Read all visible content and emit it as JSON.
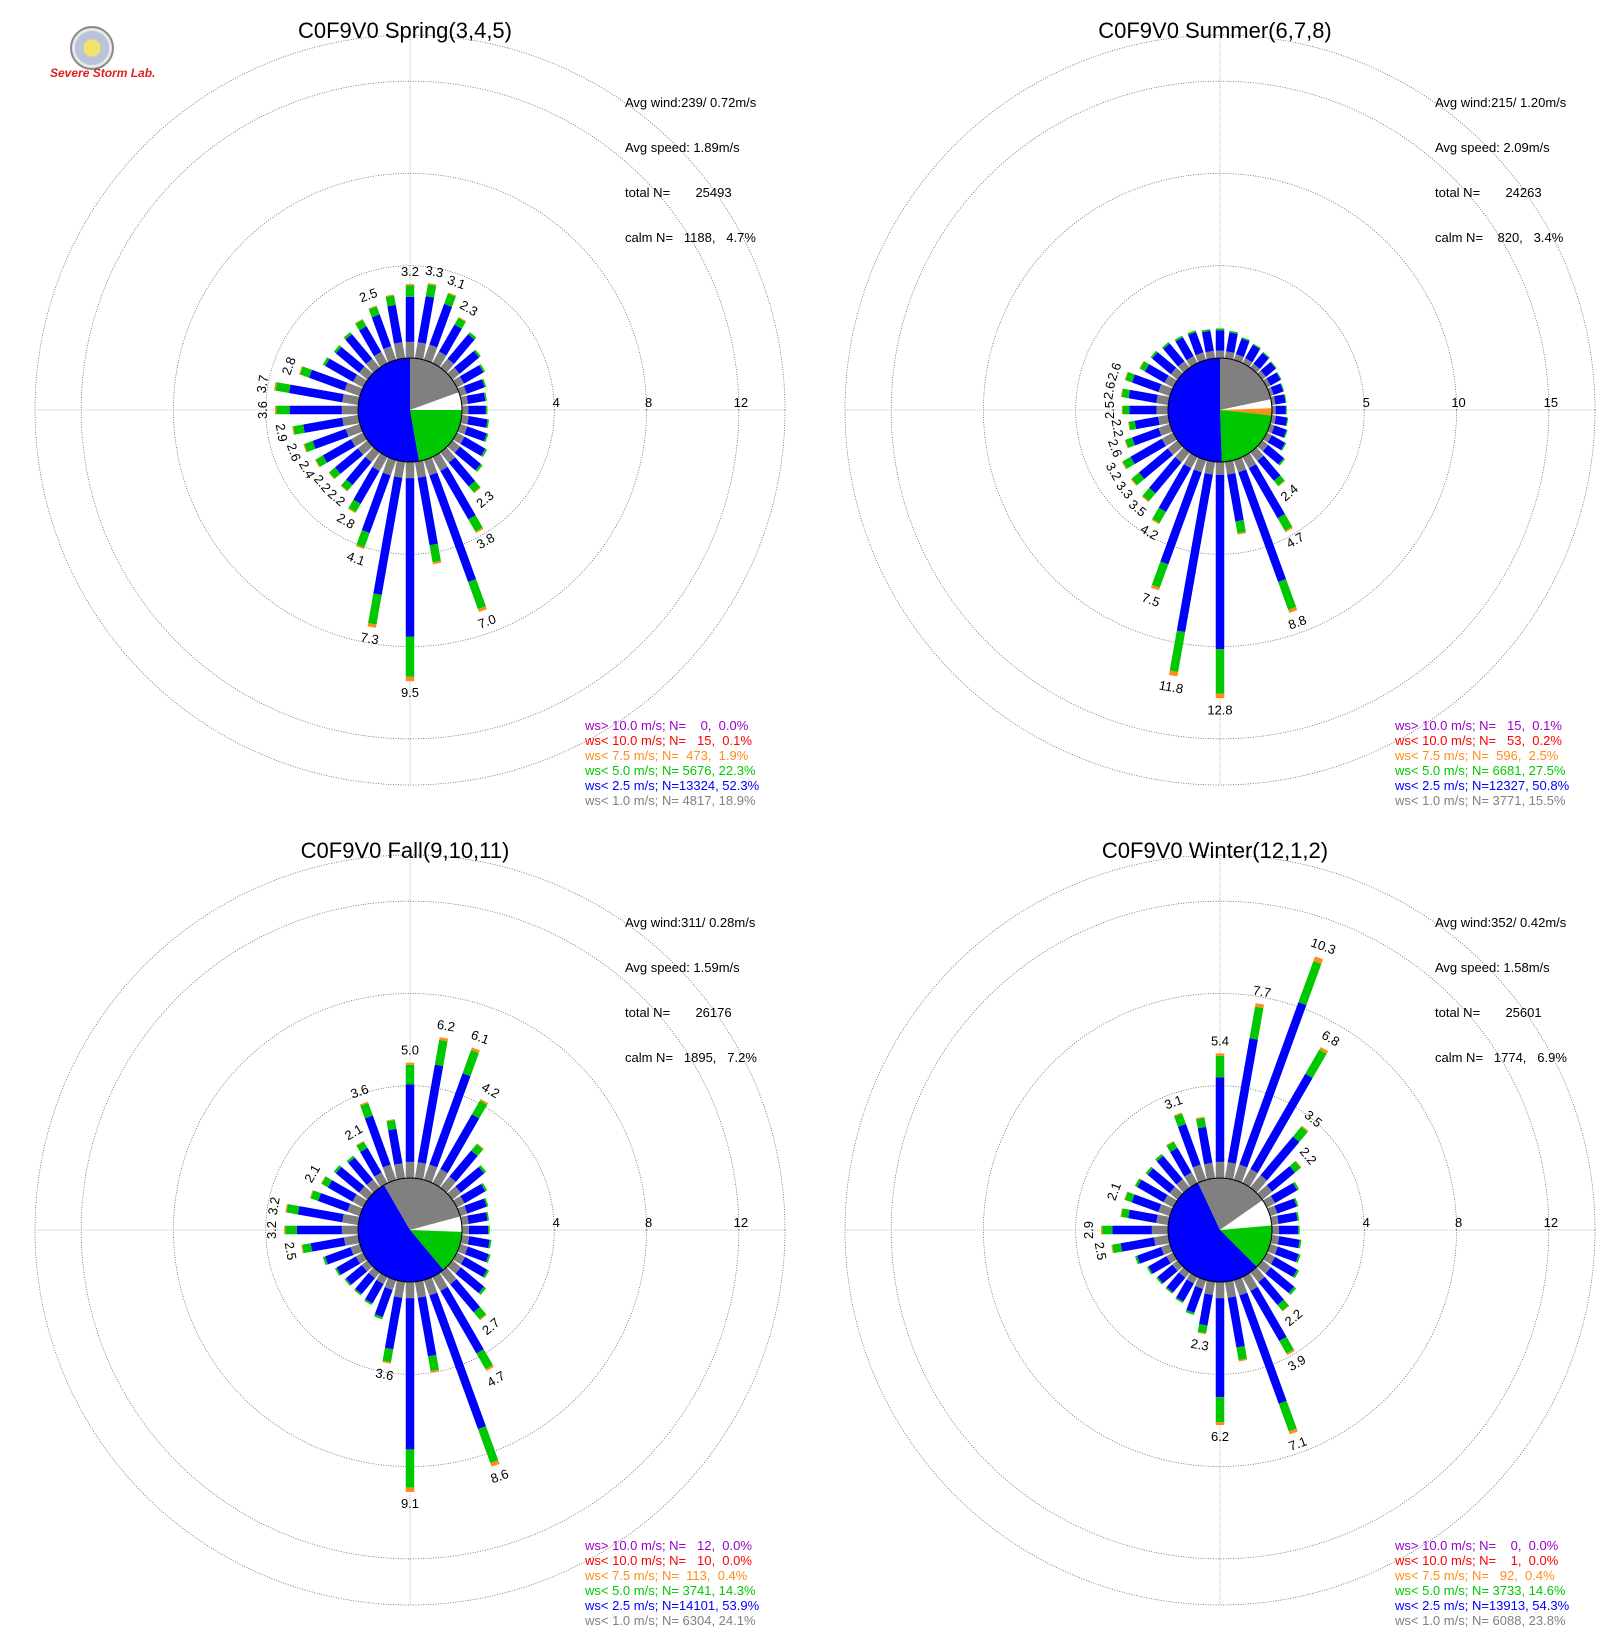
{
  "logo": {
    "text": "Severe Storm Lab."
  },
  "colors": {
    "gt10": "#9900cc",
    "lt10": "#ff0000",
    "lt75": "#ff8c1a",
    "lt5": "#00c800",
    "lt25": "#0000ff",
    "lt1": "#808080",
    "calm_blue": "#0000ff",
    "calm_green": "#00c800",
    "calm_gray": "#808080"
  },
  "legend_keys": [
    "gt10",
    "lt10",
    "lt75",
    "lt5",
    "lt25",
    "lt1"
  ],
  "legend_labels": [
    "ws> 10.0 m/s; N=",
    "ws< 10.0 m/s; N=",
    "ws< 7.5 m/s; N=",
    "ws< 5.0 m/s; N=",
    "ws< 2.5 m/s; N=",
    "ws< 1.0 m/s; N="
  ],
  "chart_data": [
    {
      "type": "polar-bar",
      "title": "C0F9V0 Spring(3,4,5)",
      "stats": {
        "avg_wind": "Avg wind:239/ 0.72m/s",
        "avg_speed": "Avg speed: 1.89m/s",
        "total": "total N=       25493",
        "calm": "calm N=   1188,   4.7%"
      },
      "r_ticks": [
        4,
        8,
        12
      ],
      "r_max": 14,
      "legend_entries": [
        "    0,  0.0%",
        "   15,  0.1%",
        "  473,  1.9%",
        " 5676, 22.3%",
        "13324, 52.3%",
        " 4817, 18.9%"
      ],
      "bars": [
        {
          "dir": 0,
          "total": 3.2,
          "label": true
        },
        {
          "dir": 10,
          "total": 3.3,
          "label": true
        },
        {
          "dir": 20,
          "total": 3.1,
          "label": true
        },
        {
          "dir": 30,
          "total": 2.3,
          "label": true
        },
        {
          "dir": 40,
          "total": 2.0
        },
        {
          "dir": 50,
          "total": 1.6
        },
        {
          "dir": 60,
          "total": 1.4
        },
        {
          "dir": 70,
          "total": 1.2
        },
        {
          "dir": 80,
          "total": 1.1
        },
        {
          "dir": 90,
          "total": 1.1
        },
        {
          "dir": 100,
          "total": 1.2
        },
        {
          "dir": 110,
          "total": 1.3
        },
        {
          "dir": 120,
          "total": 1.5
        },
        {
          "dir": 130,
          "total": 1.7
        },
        {
          "dir": 140,
          "total": 2.3,
          "label": true
        },
        {
          "dir": 150,
          "total": 3.8,
          "label": true
        },
        {
          "dir": 160,
          "total": 7.0,
          "label": true
        },
        {
          "dir": 170,
          "total": 4.5
        },
        {
          "dir": 180,
          "total": 9.5,
          "label": true
        },
        {
          "dir": 190,
          "total": 7.3,
          "label": true
        },
        {
          "dir": 200,
          "total": 4.1,
          "label": true
        },
        {
          "dir": 210,
          "total": 2.8,
          "label": true
        },
        {
          "dir": 220,
          "total": 2.2,
          "label": true
        },
        {
          "dir": 230,
          "total": 2.2,
          "label": true
        },
        {
          "dir": 240,
          "total": 2.4,
          "label": true
        },
        {
          "dir": 250,
          "total": 2.6,
          "label": true
        },
        {
          "dir": 260,
          "total": 2.9,
          "label": true
        },
        {
          "dir": 270,
          "total": 3.6,
          "label": true
        },
        {
          "dir": 280,
          "total": 3.7,
          "label": true
        },
        {
          "dir": 290,
          "total": 2.8,
          "label": true
        },
        {
          "dir": 300,
          "total": 2.0
        },
        {
          "dir": 310,
          "total": 1.9
        },
        {
          "dir": 320,
          "total": 2.0
        },
        {
          "dir": 330,
          "total": 2.2
        },
        {
          "dir": 340,
          "total": 2.5,
          "label": true
        },
        {
          "dir": 350,
          "total": 2.8
        }
      ],
      "calm_pie": [
        {
          "start": 0,
          "end": 70,
          "key": "calm_gray"
        },
        {
          "start": 70,
          "end": 90,
          "key": "white"
        },
        {
          "start": 90,
          "end": 170,
          "key": "calm_green"
        },
        {
          "start": 170,
          "end": 360,
          "key": "calm_blue"
        }
      ]
    },
    {
      "type": "polar-bar",
      "title": "C0F9V0 Summer(6,7,8)",
      "stats": {
        "avg_wind": "Avg wind:215/ 1.20m/s",
        "avg_speed": "Avg speed: 2.09m/s",
        "total": "total N=       24263",
        "calm": "calm N=    820,   3.4%"
      },
      "r_ticks": [
        5,
        10,
        15
      ],
      "r_max": 17.5,
      "legend_entries": [
        "   15,  0.1%",
        "   53,  0.2%",
        "  596,  2.5%",
        " 6681, 27.5%",
        "12327, 50.8%",
        " 3771, 15.5%"
      ],
      "bars": [
        {
          "dir": 0,
          "total": 1.6
        },
        {
          "dir": 10,
          "total": 1.5
        },
        {
          "dir": 20,
          "total": 1.3
        },
        {
          "dir": 30,
          "total": 1.2
        },
        {
          "dir": 40,
          "total": 1.1
        },
        {
          "dir": 50,
          "total": 1.0
        },
        {
          "dir": 60,
          "total": 0.9
        },
        {
          "dir": 70,
          "total": 0.8
        },
        {
          "dir": 80,
          "total": 0.8
        },
        {
          "dir": 90,
          "total": 0.8
        },
        {
          "dir": 100,
          "total": 0.9
        },
        {
          "dir": 110,
          "total": 1.0
        },
        {
          "dir": 120,
          "total": 1.2
        },
        {
          "dir": 130,
          "total": 1.6
        },
        {
          "dir": 140,
          "total": 2.4,
          "label": true
        },
        {
          "dir": 150,
          "total": 4.7,
          "label": true
        },
        {
          "dir": 160,
          "total": 8.8,
          "label": true
        },
        {
          "dir": 170,
          "total": 4.0
        },
        {
          "dir": 180,
          "total": 12.8,
          "label": true
        },
        {
          "dir": 190,
          "total": 11.8,
          "label": true
        },
        {
          "dir": 200,
          "total": 7.5,
          "label": true
        },
        {
          "dir": 210,
          "total": 4.2,
          "label": true
        },
        {
          "dir": 220,
          "total": 3.5,
          "label": true
        },
        {
          "dir": 230,
          "total": 3.3,
          "label": true
        },
        {
          "dir": 240,
          "total": 3.2,
          "label": true
        },
        {
          "dir": 250,
          "total": 2.6,
          "label": true
        },
        {
          "dir": 260,
          "total": 2.2,
          "label": true
        },
        {
          "dir": 270,
          "total": 2.5,
          "label": true
        },
        {
          "dir": 280,
          "total": 2.6,
          "label": true
        },
        {
          "dir": 290,
          "total": 2.6,
          "label": true
        },
        {
          "dir": 300,
          "total": 2.1
        },
        {
          "dir": 310,
          "total": 1.9
        },
        {
          "dir": 320,
          "total": 1.8
        },
        {
          "dir": 330,
          "total": 1.7
        },
        {
          "dir": 340,
          "total": 1.7
        },
        {
          "dir": 350,
          "total": 1.6
        }
      ],
      "calm_pie": [
        {
          "start": 0,
          "end": 78,
          "key": "calm_gray"
        },
        {
          "start": 78,
          "end": 88,
          "key": "white"
        },
        {
          "start": 88,
          "end": 96,
          "key": "lt75"
        },
        {
          "start": 96,
          "end": 178,
          "key": "calm_green"
        },
        {
          "start": 178,
          "end": 360,
          "key": "calm_blue"
        }
      ]
    },
    {
      "type": "polar-bar",
      "title": "C0F9V0 Fall(9,10,11)",
      "stats": {
        "avg_wind": "Avg wind:311/ 0.28m/s",
        "avg_speed": "Avg speed: 1.59m/s",
        "total": "total N=       26176",
        "calm": "calm N=   1895,   7.2%"
      },
      "r_ticks": [
        4,
        8,
        12
      ],
      "r_max": 14,
      "legend_entries": [
        "   12,  0.0%",
        "   10,  0.0%",
        "  113,  0.4%",
        " 3741, 14.3%",
        "14101, 53.9%",
        " 6304, 24.1%"
      ],
      "bars": [
        {
          "dir": 0,
          "total": 5.0,
          "label": true
        },
        {
          "dir": 10,
          "total": 6.2,
          "label": true
        },
        {
          "dir": 20,
          "total": 6.1,
          "label": true
        },
        {
          "dir": 30,
          "total": 4.2,
          "label": true
        },
        {
          "dir": 40,
          "total": 2.5
        },
        {
          "dir": 50,
          "total": 1.9
        },
        {
          "dir": 60,
          "total": 1.5
        },
        {
          "dir": 70,
          "total": 1.3
        },
        {
          "dir": 80,
          "total": 1.2
        },
        {
          "dir": 90,
          "total": 1.2
        },
        {
          "dir": 100,
          "total": 1.3
        },
        {
          "dir": 110,
          "total": 1.4
        },
        {
          "dir": 120,
          "total": 1.6
        },
        {
          "dir": 130,
          "total": 1.9
        },
        {
          "dir": 140,
          "total": 2.7,
          "label": true
        },
        {
          "dir": 150,
          "total": 4.7,
          "label": true
        },
        {
          "dir": 160,
          "total": 8.6,
          "label": true
        },
        {
          "dir": 170,
          "total": 4.0
        },
        {
          "dir": 180,
          "total": 9.1,
          "label": true
        },
        {
          "dir": 190,
          "total": 3.6,
          "label": true
        },
        {
          "dir": 200,
          "total": 1.8
        },
        {
          "dir": 210,
          "total": 1.4
        },
        {
          "dir": 220,
          "total": 1.3
        },
        {
          "dir": 230,
          "total": 1.3
        },
        {
          "dir": 240,
          "total": 1.4
        },
        {
          "dir": 250,
          "total": 1.7
        },
        {
          "dir": 260,
          "total": 2.5,
          "label": true
        },
        {
          "dir": 270,
          "total": 3.2,
          "label": true
        },
        {
          "dir": 280,
          "total": 3.2,
          "label": true
        },
        {
          "dir": 290,
          "total": 2.3
        },
        {
          "dir": 300,
          "total": 2.1,
          "label": true
        },
        {
          "dir": 310,
          "total": 1.9
        },
        {
          "dir": 320,
          "total": 1.8
        },
        {
          "dir": 330,
          "total": 2.1,
          "label": true
        },
        {
          "dir": 340,
          "total": 3.6,
          "label": true
        },
        {
          "dir": 350,
          "total": 2.6
        }
      ],
      "calm_pie": [
        {
          "start": 0,
          "end": 75,
          "key": "calm_gray"
        },
        {
          "start": 75,
          "end": 92,
          "key": "white"
        },
        {
          "start": 92,
          "end": 140,
          "key": "calm_green"
        },
        {
          "start": 140,
          "end": 330,
          "key": "calm_blue"
        },
        {
          "start": 330,
          "end": 360,
          "key": "calm_gray"
        }
      ]
    },
    {
      "type": "polar-bar",
      "title": "C0F9V0 Winter(12,1,2)",
      "stats": {
        "avg_wind": "Avg wind:352/ 0.42m/s",
        "avg_speed": "Avg speed: 1.58m/s",
        "total": "total N=       25601",
        "calm": "calm N=   1774,   6.9%"
      },
      "r_ticks": [
        4,
        8,
        12
      ],
      "r_max": 14,
      "legend_entries": [
        "    0,  0.0%",
        "    1,  0.0%",
        "   92,  0.4%",
        " 3733, 14.6%",
        "13913, 54.3%",
        " 6088, 23.8%"
      ],
      "bars": [
        {
          "dir": 0,
          "total": 5.4,
          "label": true
        },
        {
          "dir": 10,
          "total": 7.7,
          "label": true
        },
        {
          "dir": 20,
          "total": 10.3,
          "label": true
        },
        {
          "dir": 30,
          "total": 6.8,
          "label": true
        },
        {
          "dir": 40,
          "total": 3.5,
          "label": true
        },
        {
          "dir": 50,
          "total": 2.2,
          "label": true
        },
        {
          "dir": 60,
          "total": 1.6
        },
        {
          "dir": 70,
          "total": 1.3
        },
        {
          "dir": 80,
          "total": 1.2
        },
        {
          "dir": 90,
          "total": 1.2
        },
        {
          "dir": 100,
          "total": 1.3
        },
        {
          "dir": 110,
          "total": 1.4
        },
        {
          "dir": 120,
          "total": 1.6
        },
        {
          "dir": 130,
          "total": 1.9
        },
        {
          "dir": 140,
          "total": 2.2,
          "label": true
        },
        {
          "dir": 150,
          "total": 3.9,
          "label": true
        },
        {
          "dir": 160,
          "total": 7.1,
          "label": true
        },
        {
          "dir": 170,
          "total": 3.5
        },
        {
          "dir": 180,
          "total": 6.2,
          "label": true
        },
        {
          "dir": 190,
          "total": 2.3,
          "label": true
        },
        {
          "dir": 200,
          "total": 1.6
        },
        {
          "dir": 210,
          "total": 1.3
        },
        {
          "dir": 220,
          "total": 1.2
        },
        {
          "dir": 230,
          "total": 1.2
        },
        {
          "dir": 240,
          "total": 1.3
        },
        {
          "dir": 250,
          "total": 1.6
        },
        {
          "dir": 260,
          "total": 2.5,
          "label": true
        },
        {
          "dir": 270,
          "total": 2.9,
          "label": true
        },
        {
          "dir": 280,
          "total": 2.1
        },
        {
          "dir": 290,
          "total": 2.1,
          "label": true
        },
        {
          "dir": 300,
          "total": 1.9
        },
        {
          "dir": 310,
          "total": 1.8
        },
        {
          "dir": 320,
          "total": 1.9
        },
        {
          "dir": 330,
          "total": 2.1
        },
        {
          "dir": 340,
          "total": 3.1,
          "label": true
        },
        {
          "dir": 350,
          "total": 2.7
        }
      ],
      "calm_pie": [
        {
          "start": 0,
          "end": 55,
          "key": "calm_gray"
        },
        {
          "start": 55,
          "end": 85,
          "key": "white"
        },
        {
          "start": 85,
          "end": 135,
          "key": "calm_green"
        },
        {
          "start": 135,
          "end": 335,
          "key": "calm_blue"
        },
        {
          "start": 335,
          "end": 360,
          "key": "calm_gray"
        }
      ]
    }
  ]
}
